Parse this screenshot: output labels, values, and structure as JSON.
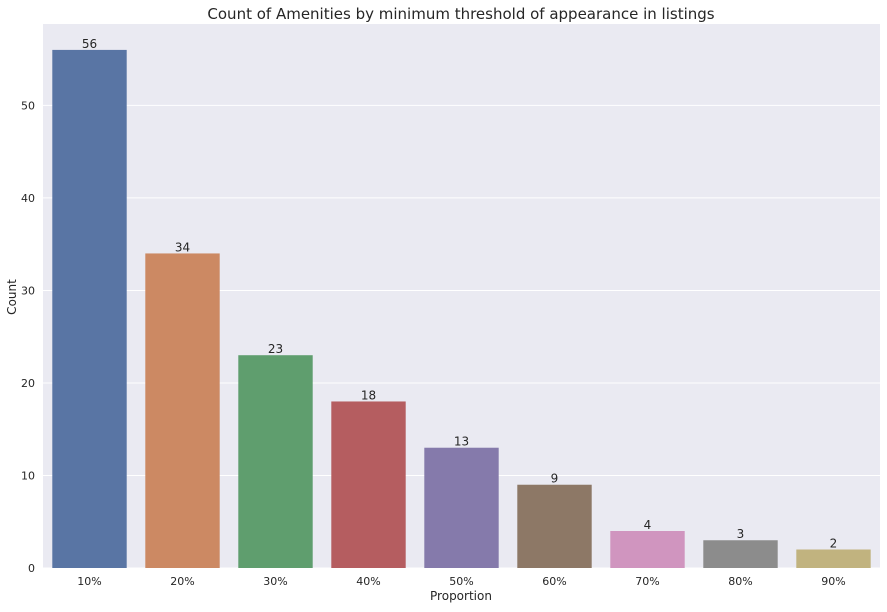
{
  "chart_data": {
    "type": "bar",
    "title": "Count of Amenities by minimum threshold of appearance in listings",
    "xlabel": "Proportion",
    "ylabel": "Count",
    "categories": [
      "10%",
      "20%",
      "30%",
      "40%",
      "50%",
      "60%",
      "70%",
      "80%",
      "90%"
    ],
    "values": [
      56,
      34,
      23,
      18,
      13,
      9,
      4,
      3,
      2
    ],
    "data_labels": [
      "56",
      "34",
      "23",
      "18",
      "13",
      "9",
      "4",
      "3",
      "2"
    ],
    "ylim": [
      0,
      58.8
    ],
    "yticks": [
      0,
      10,
      20,
      30,
      40,
      50
    ],
    "grid": true,
    "colors": [
      "#5975a4",
      "#cc8963",
      "#5f9e6e",
      "#b55d60",
      "#857aab",
      "#8d7866",
      "#d095bf",
      "#8c8c8c",
      "#c1b37f"
    ],
    "background": "#eaeaf2"
  }
}
